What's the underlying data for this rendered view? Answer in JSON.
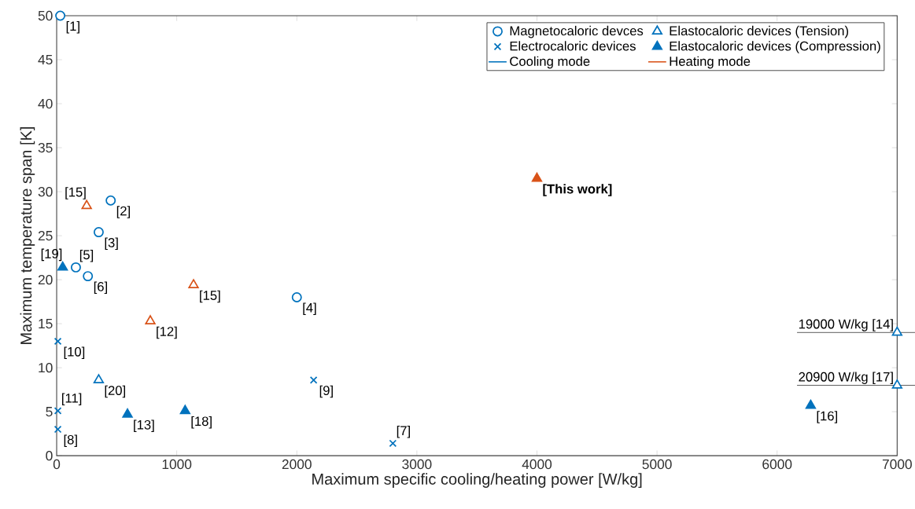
{
  "chart_data": {
    "type": "scatter",
    "xlabel": "Maximum specific cooling/heating power [W/kg]",
    "ylabel": "Maximum temperature span [K]",
    "xlim": [
      0,
      7000
    ],
    "ylim": [
      0,
      50
    ],
    "xticks": [
      0,
      1000,
      2000,
      3000,
      4000,
      5000,
      6000,
      7000
    ],
    "yticks": [
      0,
      5,
      10,
      15,
      20,
      25,
      30,
      35,
      40,
      45,
      50
    ],
    "grid": false,
    "legend": "top right",
    "series": [
      {
        "name": "Magnetocaloric devces",
        "color": "#0072bd",
        "marker": "circle",
        "x": [
          30,
          450,
          350,
          160,
          260,
          2000
        ],
        "values": [
          50,
          29,
          25.4,
          21.4,
          20.4,
          18
        ]
      },
      {
        "name": "Electrocaloric devices",
        "color": "#0072bd",
        "marker": "cross",
        "x": [
          10,
          10,
          10,
          2140,
          2800
        ],
        "values": [
          13,
          5.1,
          3,
          8.6,
          1.4
        ]
      },
      {
        "name": "Elastocaloric devices (Tension)",
        "color": "#0072bd",
        "marker": "triangle",
        "x": [
          350,
          7000,
          7000
        ],
        "values": [
          8.6,
          14,
          8
        ]
      },
      {
        "color": "#d95319",
        "marker": "triangle",
        "x": [
          250,
          1140,
          780
        ],
        "values": [
          28.4,
          19.4,
          15.3
        ]
      },
      {
        "name": "Elastocaloric devices (Compression)",
        "color": "#0072bd",
        "marker": "triangle-filled",
        "x": [
          50,
          590,
          1070,
          6280
        ],
        "values": [
          21.4,
          4.7,
          5.1,
          5.7
        ]
      },
      {
        "color": "#d95319",
        "marker": "triangle-filled",
        "x": [
          4000
        ],
        "values": [
          31.5
        ]
      }
    ],
    "annotations": [
      {
        "text": "[1]",
        "x": 30,
        "y": 50
      },
      {
        "text": "[2]",
        "x": 450,
        "y": 29
      },
      {
        "text": "[3]",
        "x": 350,
        "y": 25.4
      },
      {
        "text": "[15]",
        "x": 250,
        "y": 28.4
      },
      {
        "text": "[19]",
        "x": 50,
        "y": 21.4
      },
      {
        "text": "[5]",
        "x": 160,
        "y": 21.4
      },
      {
        "text": "[6]",
        "x": 260,
        "y": 20.4
      },
      {
        "text": "[15]",
        "x": 1140,
        "y": 19.4
      },
      {
        "text": "[4]",
        "x": 2000,
        "y": 18
      },
      {
        "text": "[12]",
        "x": 780,
        "y": 15.3
      },
      {
        "text": "[10]",
        "x": 10,
        "y": 13
      },
      {
        "text": "[20]",
        "x": 350,
        "y": 8.6
      },
      {
        "text": "[9]",
        "x": 2140,
        "y": 8.6
      },
      {
        "text": "[11]",
        "x": 10,
        "y": 5.1
      },
      {
        "text": "[13]",
        "x": 590,
        "y": 4.7
      },
      {
        "text": "[18]",
        "x": 1070,
        "y": 5.1
      },
      {
        "text": "[8]",
        "x": 10,
        "y": 3
      },
      {
        "text": "[7]",
        "x": 2800,
        "y": 1.4
      },
      {
        "text": "[16]",
        "x": 6280,
        "y": 5.7
      },
      {
        "text": "**[This work]**",
        "x": 4000,
        "y": 31.5
      },
      {
        "text": "19000 W/kg [14]",
        "x": 7000,
        "y": 14
      },
      {
        "text": "20900 W/kg [17]",
        "x": 7000,
        "y": 8
      },
      "Cooling mode",
      "Heating mode"
    ]
  }
}
